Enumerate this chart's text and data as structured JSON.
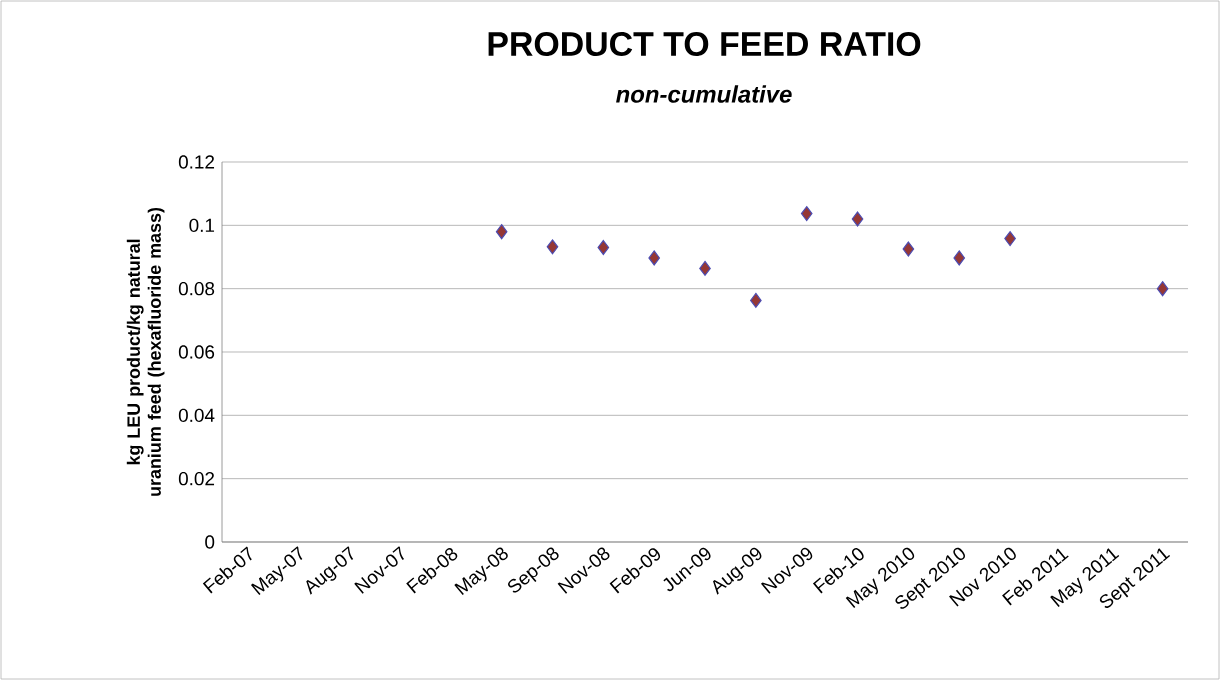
{
  "chart_data": {
    "type": "scatter",
    "title": "PRODUCT TO FEED RATIO",
    "subtitle": "non-cumulative",
    "ylabel": "kg LEU product/kg natural uranium feed (hexafluoride mass)",
    "categories": [
      "Feb-07",
      "May-07",
      "Aug-07",
      "Nov-07",
      "Feb-08",
      "May-08",
      "Sep-08",
      "Nov-08",
      "Feb-09",
      "Jun-09",
      "Aug-09",
      "Nov-09",
      "Feb-10",
      "May 2010",
      "Sept 2010",
      "Nov 2010",
      "Feb 2011",
      "May 2011",
      "Sept 2011"
    ],
    "series": [
      {
        "color": "#953735",
        "values": [
          null,
          null,
          null,
          null,
          null,
          0.098,
          0.0932,
          0.093,
          0.0897,
          0.0864,
          0.0763,
          0.1037,
          0.102,
          0.0925,
          0.0897,
          0.0958,
          null,
          null,
          0.08
        ]
      }
    ],
    "ylim": [
      0,
      0.12
    ],
    "yticks": [
      0,
      0.02,
      0.04,
      0.06,
      0.08,
      0.1,
      0.12
    ],
    "grid": "y",
    "marker": "diamond"
  }
}
